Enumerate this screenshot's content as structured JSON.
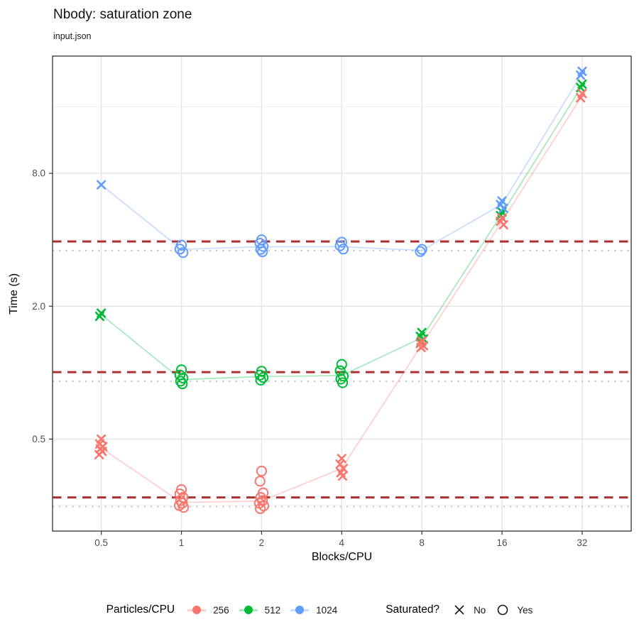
{
  "header": {
    "title": "Nbody: saturation zone",
    "subtitle": "input.json"
  },
  "axes": {
    "x_label": "Blocks/CPU",
    "y_label": "Time (s)",
    "x_tick_labels": [
      "0.5",
      "1",
      "2",
      "4",
      "8",
      "16",
      "32"
    ],
    "y_tick_labels": [
      "0.5",
      "2.0",
      "8.0"
    ]
  },
  "legend": {
    "color_title": "Particles/CPU",
    "shape_title": "Saturated?",
    "shape_items": [
      {
        "label": "No",
        "shape": "x"
      },
      {
        "label": "Yes",
        "shape": "circle"
      }
    ]
  },
  "style": {
    "dashed_ref_color": "#A93232",
    "dotted_ref_color": "#C8C8C8",
    "grid_major_color": "#E4E4E4",
    "grid_minor_color": "#F0F0F0",
    "panel_border_color": "#333333",
    "tick_label_color": "#4D4D4D",
    "tick_mark_color": "#333333",
    "shape_glyph_color": "#1a1a1a"
  },
  "chart_data": {
    "type": "scatter",
    "title": "Nbody: saturation zone",
    "subtitle": "input.json",
    "xlabel": "Blocks/CPU",
    "ylabel": "Time (s)",
    "x_scale": "log2",
    "y_scale": "log2",
    "x_ticks": [
      0.5,
      1,
      2,
      4,
      8,
      16,
      32
    ],
    "y_ticks": [
      0.5,
      2,
      8
    ],
    "y_minor_ticks": [
      0.25,
      1,
      4,
      16
    ],
    "x_domain": [
      0.328,
      48.9
    ],
    "y_domain": [
      0.1914,
      27.2
    ],
    "grid": true,
    "legend_position": "bottom",
    "shape_encoding": {
      "x_mark": "not saturated (No)",
      "open_circle": "saturated (Yes)"
    },
    "series": [
      {
        "name": "256",
        "color": "#F8766D",
        "threshold_dashed": 0.272,
        "baseline_dotted": 0.247,
        "trend": [
          [
            0.5,
            0.455
          ],
          [
            1,
            0.258
          ],
          [
            2,
            0.262
          ],
          [
            4,
            0.368
          ],
          [
            8,
            1.34
          ],
          [
            16,
            4.85
          ],
          [
            32,
            18.0
          ]
        ],
        "clusters": [
          {
            "x": 0.5,
            "saturated": false,
            "values": [
              0.5,
              0.475,
              0.462,
              0.452,
              0.44,
              0.425
            ]
          },
          {
            "x": 1,
            "saturated": true,
            "values": [
              0.295,
              0.282,
              0.272,
              0.263,
              0.256,
              0.25,
              0.245
            ]
          },
          {
            "x": 2,
            "saturated": true,
            "values": [
              0.358,
              0.322,
              0.285,
              0.272,
              0.263,
              0.256,
              0.249,
              0.242
            ]
          },
          {
            "x": 4,
            "saturated": false,
            "values": [
              0.408,
              0.385,
              0.368,
              0.352,
              0.34
            ]
          },
          {
            "x": 8,
            "saturated": false,
            "values": [
              1.39,
              1.355,
              1.325,
              1.3
            ]
          },
          {
            "x": 16,
            "saturated": false,
            "values": [
              5.02,
              4.85,
              4.68
            ]
          },
          {
            "x": 32,
            "saturated": false,
            "values": [
              18.4,
              17.6
            ]
          }
        ]
      },
      {
        "name": "512",
        "color": "#00BA38",
        "threshold_dashed": 1.005,
        "baseline_dotted": 0.913,
        "trend": [
          [
            0.5,
            1.83
          ],
          [
            1,
            0.93
          ],
          [
            2,
            0.96
          ],
          [
            4,
            0.97
          ],
          [
            8,
            1.44
          ],
          [
            16,
            5.25
          ],
          [
            32,
            19.95
          ]
        ],
        "clusters": [
          {
            "x": 0.5,
            "saturated": false,
            "values": [
              1.86,
              1.8
            ]
          },
          {
            "x": 1,
            "saturated": true,
            "values": [
              1.03,
              0.975,
              0.945,
              0.915,
              0.89
            ]
          },
          {
            "x": 2,
            "saturated": true,
            "values": [
              1.015,
              0.975,
              0.95,
              0.925
            ]
          },
          {
            "x": 4,
            "saturated": true,
            "values": [
              1.09,
              1.02,
              0.965,
              0.935,
              0.9
            ]
          },
          {
            "x": 8,
            "saturated": false,
            "values": [
              1.52,
              1.46,
              1.42,
              1.38
            ]
          },
          {
            "x": 16,
            "saturated": false,
            "values": [
              5.35,
              5.15
            ]
          },
          {
            "x": 32,
            "saturated": false,
            "values": [
              20.3,
              19.6
            ]
          }
        ]
      },
      {
        "name": "1024",
        "color": "#619CFF",
        "threshold_dashed": 3.93,
        "baseline_dotted": 3.57,
        "trend": [
          [
            0.5,
            7.1
          ],
          [
            1,
            3.62
          ],
          [
            2,
            3.72
          ],
          [
            4,
            3.72
          ],
          [
            8,
            3.58
          ],
          [
            16,
            5.8
          ],
          [
            32,
            22.7
          ]
        ],
        "clusters": [
          {
            "x": 0.5,
            "saturated": false,
            "values": [
              7.1
            ]
          },
          {
            "x": 1,
            "saturated": true,
            "values": [
              3.78,
              3.63,
              3.5
            ]
          },
          {
            "x": 2,
            "saturated": true,
            "values": [
              4.0,
              3.86,
              3.73,
              3.62,
              3.53
            ]
          },
          {
            "x": 4,
            "saturated": true,
            "values": [
              3.9,
              3.76,
              3.63
            ]
          },
          {
            "x": 8,
            "saturated": true,
            "values": [
              3.62,
              3.54
            ]
          },
          {
            "x": 16,
            "saturated": false,
            "values": [
              6.0,
              5.78,
              5.55
            ]
          },
          {
            "x": 32,
            "saturated": false,
            "values": [
              23.2,
              22.3
            ]
          }
        ]
      }
    ]
  }
}
